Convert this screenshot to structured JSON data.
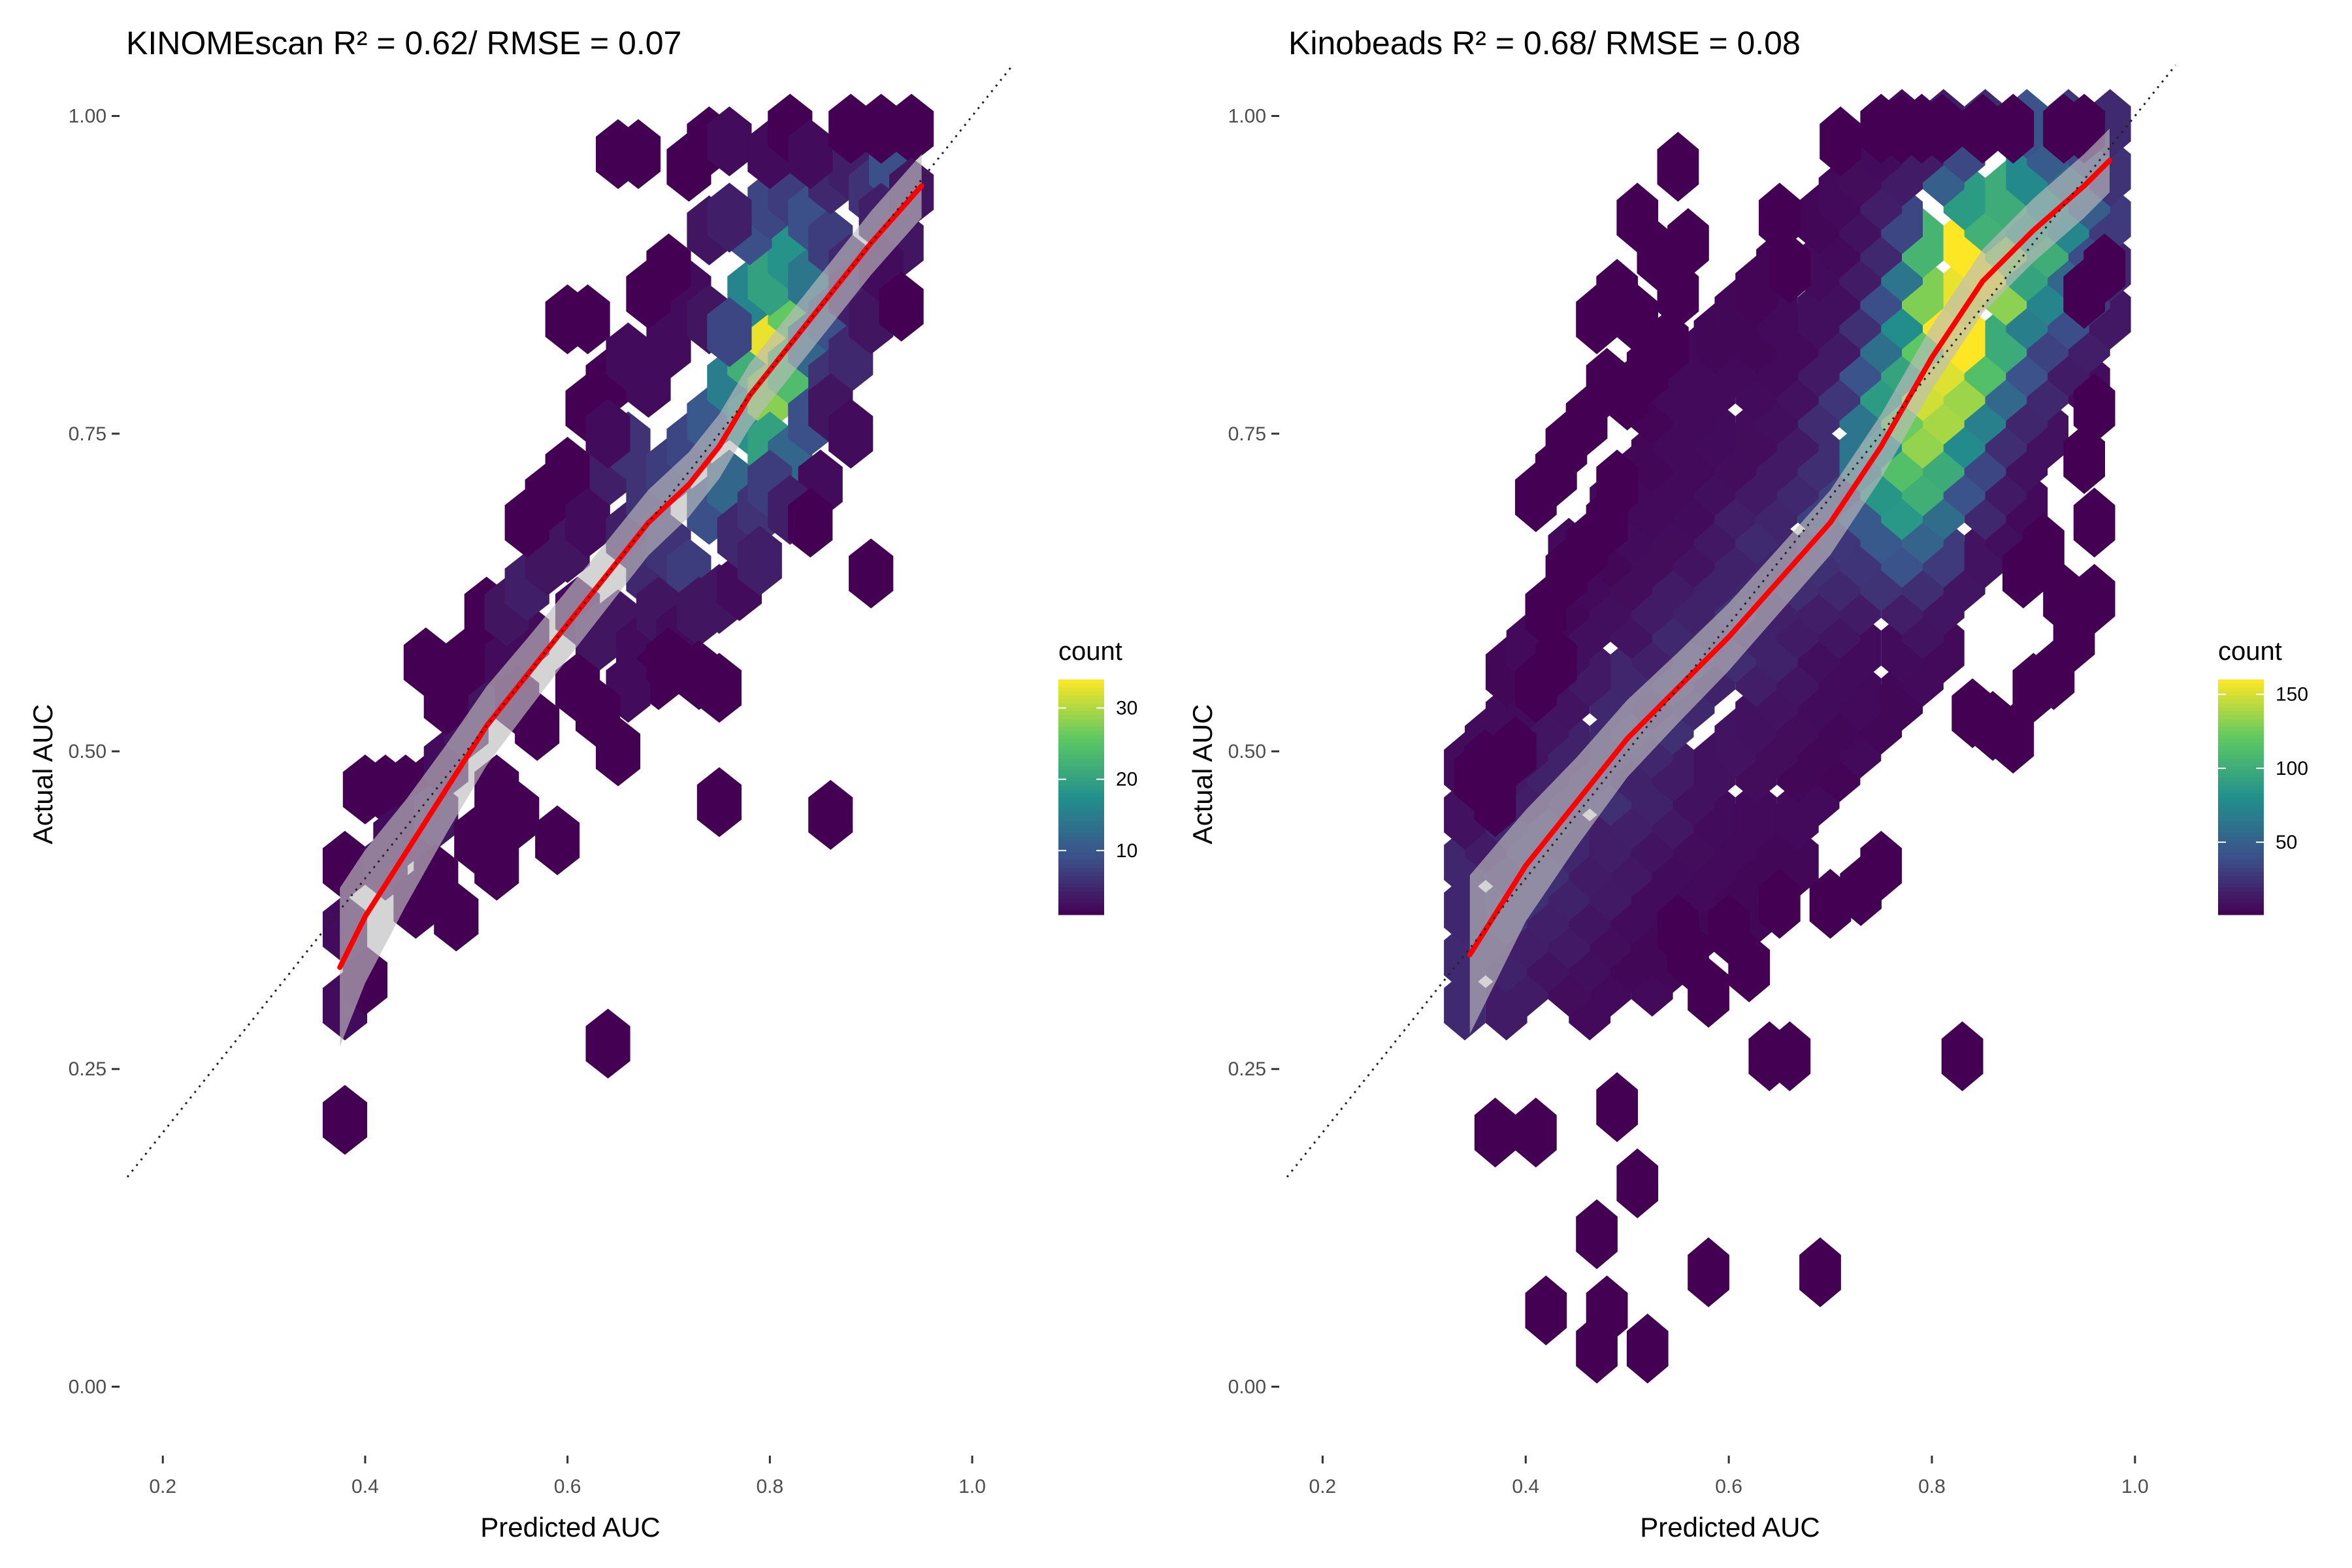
{
  "chart_data": [
    {
      "type": "hexbin",
      "title": "KINOMEscan R² = 0.62/ RMSE = 0.07",
      "xlabel": "Predicted AUC",
      "ylabel": "Actual AUC",
      "xlim": [
        0.165,
        1.04
      ],
      "ylim": [
        -0.045,
        1.045
      ],
      "xticks": [
        0.2,
        0.4,
        0.6,
        0.8,
        1.0
      ],
      "xtick_labels": [
        "0.2",
        "0.4",
        "0.6",
        "0.8",
        "1.0"
      ],
      "yticks": [
        0.0,
        0.25,
        0.5,
        0.75,
        1.0
      ],
      "ytick_labels": [
        "0.00",
        "0.25",
        "0.50",
        "0.75",
        "1.00"
      ],
      "identity_line": true,
      "legend": {
        "title": "count",
        "min": 1,
        "max": 34,
        "ticks": [
          10,
          20,
          30
        ],
        "tick_labels": [
          "10",
          "20",
          "30"
        ],
        "colors": [
          "#440154",
          "#3b528b",
          "#21908c",
          "#5dc863",
          "#fde725"
        ]
      },
      "hex": {
        "dx": 0.022,
        "dy": 0.0125
      },
      "bins": [
        [
          0.38,
          0.21,
          1
        ],
        [
          0.38,
          0.3,
          2
        ],
        [
          0.4,
          0.32,
          1
        ],
        [
          0.38,
          0.36,
          2
        ],
        [
          0.38,
          0.41,
          1
        ],
        [
          0.42,
          0.41,
          2
        ],
        [
          0.4,
          0.47,
          1
        ],
        [
          0.42,
          0.47,
          1
        ],
        [
          0.44,
          0.47,
          1
        ],
        [
          0.46,
          0.47,
          1
        ],
        [
          0.43,
          0.43,
          2
        ],
        [
          0.45,
          0.44,
          2
        ],
        [
          0.47,
          0.45,
          3
        ],
        [
          0.45,
          0.38,
          1
        ],
        [
          0.47,
          0.4,
          1
        ],
        [
          0.49,
          0.37,
          1
        ],
        [
          0.48,
          0.49,
          2
        ],
        [
          0.5,
          0.52,
          3
        ],
        [
          0.52,
          0.55,
          3
        ],
        [
          0.46,
          0.57,
          1
        ],
        [
          0.48,
          0.54,
          1
        ],
        [
          0.5,
          0.57,
          1
        ],
        [
          0.52,
          0.61,
          1
        ],
        [
          0.54,
          0.57,
          2
        ],
        [
          0.56,
          0.59,
          2
        ],
        [
          0.55,
          0.54,
          1
        ],
        [
          0.57,
          0.52,
          1
        ],
        [
          0.53,
          0.47,
          1
        ],
        [
          0.55,
          0.45,
          1
        ],
        [
          0.51,
          0.43,
          1
        ],
        [
          0.53,
          0.41,
          1
        ],
        [
          0.54,
          0.61,
          3
        ],
        [
          0.56,
          0.63,
          4
        ],
        [
          0.58,
          0.65,
          3
        ],
        [
          0.6,
          0.66,
          3
        ],
        [
          0.62,
          0.69,
          5
        ],
        [
          0.64,
          0.72,
          4
        ],
        [
          0.66,
          0.74,
          6
        ],
        [
          0.58,
          0.7,
          1
        ],
        [
          0.6,
          0.72,
          1
        ],
        [
          0.56,
          0.68,
          1
        ],
        [
          0.61,
          0.61,
          2
        ],
        [
          0.63,
          0.59,
          3
        ],
        [
          0.65,
          0.6,
          3
        ],
        [
          0.67,
          0.58,
          2
        ],
        [
          0.69,
          0.56,
          1
        ],
        [
          0.66,
          0.55,
          2
        ],
        [
          0.63,
          0.53,
          1
        ],
        [
          0.61,
          0.55,
          1
        ],
        [
          0.65,
          0.5,
          1
        ],
        [
          0.59,
          0.43,
          1
        ],
        [
          0.64,
          0.27,
          1
        ],
        [
          0.62,
          0.68,
          2
        ],
        [
          0.6,
          0.84,
          1
        ],
        [
          0.62,
          0.84,
          1
        ],
        [
          0.64,
          0.79,
          1
        ],
        [
          0.66,
          0.81,
          2
        ],
        [
          0.68,
          0.79,
          2
        ],
        [
          0.7,
          0.82,
          2
        ],
        [
          0.72,
          0.86,
          2
        ],
        [
          0.74,
          0.84,
          3
        ],
        [
          0.62,
          0.77,
          1
        ],
        [
          0.64,
          0.75,
          2
        ],
        [
          0.66,
          0.67,
          4
        ],
        [
          0.68,
          0.7,
          6
        ],
        [
          0.7,
          0.72,
          7
        ],
        [
          0.72,
          0.74,
          8
        ],
        [
          0.74,
          0.76,
          10
        ],
        [
          0.68,
          0.64,
          5
        ],
        [
          0.7,
          0.66,
          6
        ],
        [
          0.72,
          0.64,
          7
        ],
        [
          0.74,
          0.69,
          9
        ],
        [
          0.76,
          0.71,
          12
        ],
        [
          0.69,
          0.61,
          3
        ],
        [
          0.71,
          0.59,
          2
        ],
        [
          0.73,
          0.61,
          3
        ],
        [
          0.7,
          0.57,
          1
        ],
        [
          0.73,
          0.56,
          1
        ],
        [
          0.75,
          0.55,
          1
        ],
        [
          0.75,
          0.62,
          3
        ],
        [
          0.77,
          0.63,
          2
        ],
        [
          0.77,
          0.67,
          5
        ],
        [
          0.79,
          0.69,
          6
        ],
        [
          0.75,
          0.46,
          1
        ],
        [
          0.76,
          0.79,
          15
        ],
        [
          0.78,
          0.81,
          22
        ],
        [
          0.78,
          0.76,
          18
        ],
        [
          0.8,
          0.78,
          28
        ],
        [
          0.8,
          0.83,
          33
        ],
        [
          0.82,
          0.85,
          26
        ],
        [
          0.82,
          0.8,
          24
        ],
        [
          0.78,
          0.86,
          16
        ],
        [
          0.8,
          0.87,
          20
        ],
        [
          0.82,
          0.89,
          18
        ],
        [
          0.84,
          0.87,
          14
        ],
        [
          0.8,
          0.74,
          20
        ],
        [
          0.82,
          0.73,
          12
        ],
        [
          0.84,
          0.76,
          9
        ],
        [
          0.84,
          0.82,
          12
        ],
        [
          0.86,
          0.84,
          9
        ],
        [
          0.86,
          0.79,
          6
        ],
        [
          0.88,
          0.81,
          5
        ],
        [
          0.76,
          0.83,
          8
        ],
        [
          0.78,
          0.91,
          9
        ],
        [
          0.8,
          0.93,
          8
        ],
        [
          0.82,
          0.94,
          7
        ],
        [
          0.84,
          0.92,
          9
        ],
        [
          0.86,
          0.9,
          7
        ],
        [
          0.88,
          0.88,
          5
        ],
        [
          0.86,
          0.95,
          5
        ],
        [
          0.88,
          0.96,
          4
        ],
        [
          0.9,
          0.94,
          6
        ],
        [
          0.92,
          0.96,
          9
        ],
        [
          0.91,
          0.92,
          4
        ],
        [
          0.93,
          0.9,
          3
        ],
        [
          0.88,
          0.86,
          4
        ],
        [
          0.9,
          0.84,
          3
        ],
        [
          0.91,
          0.88,
          2
        ],
        [
          0.74,
          0.91,
          3
        ],
        [
          0.76,
          0.92,
          4
        ],
        [
          0.72,
          0.96,
          1
        ],
        [
          0.74,
          0.98,
          1
        ],
        [
          0.76,
          0.98,
          2
        ],
        [
          0.8,
          0.97,
          2
        ],
        [
          0.82,
          0.99,
          1
        ],
        [
          0.84,
          0.97,
          2
        ],
        [
          0.88,
          0.99,
          1
        ],
        [
          0.91,
          0.99,
          1
        ],
        [
          0.94,
          0.99,
          1
        ],
        [
          0.94,
          0.94,
          3
        ],
        [
          0.86,
          0.77,
          3
        ],
        [
          0.85,
          0.71,
          2
        ],
        [
          0.88,
          0.75,
          2
        ],
        [
          0.8,
          0.71,
          7
        ],
        [
          0.82,
          0.69,
          4
        ],
        [
          0.79,
          0.65,
          4
        ],
        [
          0.84,
          0.68,
          1
        ],
        [
          0.86,
          0.45,
          1
        ],
        [
          0.9,
          0.64,
          1
        ],
        [
          0.93,
          0.85,
          1
        ],
        [
          0.7,
          0.88,
          1
        ],
        [
          0.68,
          0.86,
          1
        ],
        [
          0.65,
          0.97,
          1
        ],
        [
          0.67,
          0.97,
          1
        ]
      ],
      "smooth_line": {
        "x": [
          0.375,
          0.4,
          0.44,
          0.48,
          0.52,
          0.56,
          0.6,
          0.64,
          0.68,
          0.72,
          0.75,
          0.78,
          0.82,
          0.86,
          0.9,
          0.95
        ],
        "y": [
          0.33,
          0.37,
          0.42,
          0.47,
          0.52,
          0.56,
          0.6,
          0.64,
          0.68,
          0.71,
          0.74,
          0.78,
          0.82,
          0.86,
          0.9,
          0.945
        ]
      }
    },
    {
      "type": "hexbin",
      "title": "Kinobeads R² = 0.68/ RMSE = 0.08",
      "xlabel": "Predicted AUC",
      "ylabel": "Actual AUC",
      "xlim": [
        0.165,
        1.04
      ],
      "ylim": [
        -0.045,
        1.045
      ],
      "xticks": [
        0.2,
        0.4,
        0.6,
        0.8,
        1.0
      ],
      "xtick_labels": [
        "0.2",
        "0.4",
        "0.6",
        "0.8",
        "1.0"
      ],
      "yticks": [
        0.0,
        0.25,
        0.5,
        0.75,
        1.0
      ],
      "ytick_labels": [
        "0.00",
        "0.25",
        "0.50",
        "0.75",
        "1.00"
      ],
      "identity_line": true,
      "legend": {
        "title": "count",
        "min": 1,
        "max": 160,
        "ticks": [
          50,
          100,
          150
        ],
        "tick_labels": [
          "50",
          "100",
          "150"
        ],
        "colors": [
          "#440154",
          "#3b528b",
          "#21908c",
          "#5dc863",
          "#fde725"
        ]
      },
      "hex": {
        "dx": 0.0205,
        "dy": 0.0125
      },
      "smooth_line": {
        "x": [
          0.345,
          0.4,
          0.45,
          0.5,
          0.55,
          0.6,
          0.65,
          0.7,
          0.75,
          0.8,
          0.85,
          0.9,
          0.95,
          0.975
        ],
        "y": [
          0.34,
          0.41,
          0.46,
          0.51,
          0.55,
          0.59,
          0.635,
          0.68,
          0.74,
          0.81,
          0.87,
          0.91,
          0.945,
          0.965
        ]
      },
      "density_peaks": [
        {
          "x": 0.83,
          "y": 0.86,
          "peak": 160
        },
        {
          "x": 0.78,
          "y": 0.74,
          "peak": 95
        },
        {
          "x": 0.9,
          "y": 0.92,
          "peak": 60
        }
      ],
      "outlier_bins": [
        [
          0.37,
          0.2,
          1
        ],
        [
          0.41,
          0.2,
          1
        ],
        [
          0.47,
          0.12,
          1
        ],
        [
          0.51,
          0.16,
          1
        ],
        [
          0.49,
          0.22,
          1
        ],
        [
          0.42,
          0.06,
          1
        ],
        [
          0.47,
          0.03,
          1
        ],
        [
          0.48,
          0.06,
          1
        ],
        [
          0.52,
          0.03,
          1
        ],
        [
          0.58,
          0.09,
          1
        ],
        [
          0.69,
          0.09,
          1
        ],
        [
          0.64,
          0.26,
          1
        ],
        [
          0.66,
          0.26,
          1
        ],
        [
          0.83,
          0.26,
          1
        ],
        [
          0.55,
          0.36,
          1
        ],
        [
          0.58,
          0.31,
          1
        ],
        [
          0.56,
          0.34,
          1
        ],
        [
          0.65,
          0.38,
          1
        ],
        [
          0.7,
          0.38,
          1
        ],
        [
          0.73,
          0.39,
          1
        ],
        [
          0.75,
          0.41,
          1
        ],
        [
          0.62,
          0.33,
          1
        ],
        [
          0.6,
          0.36,
          1
        ],
        [
          0.55,
          0.96,
          1
        ],
        [
          0.51,
          0.92,
          1
        ],
        [
          0.53,
          0.89,
          1
        ],
        [
          0.56,
          0.9,
          1
        ],
        [
          0.55,
          0.86,
          1
        ],
        [
          0.65,
          0.92,
          1
        ],
        [
          0.66,
          0.88,
          1
        ],
        [
          0.71,
          0.98,
          1
        ],
        [
          0.75,
          0.99,
          1
        ],
        [
          0.77,
          0.99,
          1
        ],
        [
          0.79,
          0.99,
          1
        ],
        [
          0.81,
          0.99,
          1
        ],
        [
          0.85,
          0.99,
          1
        ],
        [
          0.88,
          0.99,
          1
        ],
        [
          0.93,
          0.99,
          1
        ],
        [
          0.95,
          0.99,
          1
        ],
        [
          0.89,
          0.64,
          1
        ],
        [
          0.91,
          0.66,
          1
        ],
        [
          0.93,
          0.62,
          1
        ],
        [
          0.94,
          0.59,
          1
        ],
        [
          0.9,
          0.55,
          1
        ],
        [
          0.88,
          0.51,
          1
        ],
        [
          0.86,
          0.52,
          1
        ],
        [
          0.84,
          0.53,
          1
        ],
        [
          0.92,
          0.56,
          1
        ],
        [
          0.96,
          0.62,
          1
        ],
        [
          0.96,
          0.68,
          1
        ],
        [
          0.95,
          0.73,
          1
        ],
        [
          0.96,
          0.77,
          1
        ],
        [
          0.95,
          0.86,
          1
        ],
        [
          0.97,
          0.88,
          1
        ],
        [
          0.35,
          0.48,
          1
        ],
        [
          0.37,
          0.46,
          1
        ],
        [
          0.36,
          0.49,
          1
        ],
        [
          0.39,
          0.5,
          1
        ],
        [
          0.41,
          0.55,
          1
        ],
        [
          0.43,
          0.57,
          1
        ],
        [
          0.42,
          0.61,
          1
        ],
        [
          0.44,
          0.64,
          1
        ],
        [
          0.46,
          0.66,
          1
        ],
        [
          0.48,
          0.68,
          1
        ],
        [
          0.49,
          0.71,
          1
        ],
        [
          0.48,
          0.79,
          1
        ],
        [
          0.5,
          0.78,
          1
        ],
        [
          0.52,
          0.8,
          1
        ],
        [
          0.54,
          0.82,
          1
        ],
        [
          0.51,
          0.84,
          1
        ],
        [
          0.47,
          0.84,
          1
        ],
        [
          0.49,
          0.86,
          1
        ],
        [
          0.44,
          0.74,
          1
        ],
        [
          0.46,
          0.76,
          1
        ],
        [
          0.41,
          0.7,
          1
        ],
        [
          0.43,
          0.72,
          1
        ]
      ]
    }
  ]
}
